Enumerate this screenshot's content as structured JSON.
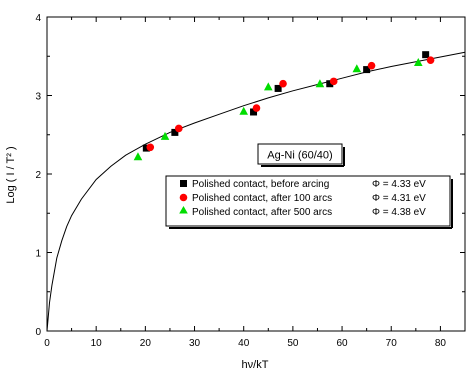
{
  "chart_data": {
    "type": "scatter",
    "title": "",
    "xlabel": "hν/kT",
    "ylabel": "Log ( I / T² )",
    "xlim": [
      0,
      85
    ],
    "ylim": [
      0,
      4
    ],
    "x_ticks": [
      0,
      10,
      20,
      30,
      40,
      50,
      60,
      70,
      80
    ],
    "y_ticks": [
      0,
      1,
      2,
      3,
      4
    ],
    "x_tick_labels": [
      "0",
      "10",
      "20",
      "30",
      "40",
      "50",
      "60",
      "70",
      "80"
    ],
    "y_tick_labels": [
      "0",
      "1",
      "2",
      "3",
      "4"
    ],
    "grid": false,
    "inset_label": "Ag-Ni (60/40)",
    "legend_position": "center-right",
    "series": [
      {
        "name": "Polished contact, before arcing",
        "phi_label": "Φ = 4.33 eV",
        "marker": "square",
        "color": "#000000",
        "points": [
          [
            20.2,
            2.33
          ],
          [
            26.0,
            2.53
          ],
          [
            42.0,
            2.79
          ],
          [
            47.0,
            3.09
          ],
          [
            57.5,
            3.15
          ],
          [
            65.0,
            3.33
          ],
          [
            77.0,
            3.52
          ]
        ]
      },
      {
        "name": "Polished contact, after 100 arcs",
        "phi_label": "Φ = 4.31 eV",
        "marker": "circle",
        "color": "#ff0000",
        "points": [
          [
            21.0,
            2.34
          ],
          [
            26.8,
            2.58
          ],
          [
            42.6,
            2.84
          ],
          [
            48.0,
            3.15
          ],
          [
            58.3,
            3.18
          ],
          [
            66.0,
            3.38
          ],
          [
            78.0,
            3.45
          ]
        ]
      },
      {
        "name": "Polished contact, after 500 arcs",
        "phi_label": "Φ = 4.38 eV",
        "marker": "triangle",
        "color": "#00dd00",
        "points": [
          [
            18.5,
            2.22
          ],
          [
            24.0,
            2.48
          ],
          [
            40.0,
            2.8
          ],
          [
            45.0,
            3.11
          ],
          [
            55.5,
            3.15
          ],
          [
            63.0,
            3.34
          ],
          [
            75.5,
            3.42
          ]
        ]
      }
    ],
    "fit_curve": {
      "type": "line",
      "color": "#000000",
      "description": "fitted curve",
      "x": [
        0,
        0.5,
        1,
        2,
        3,
        4,
        5,
        7,
        10,
        13,
        16,
        20,
        25,
        30,
        35,
        40,
        45,
        50,
        55,
        60,
        65,
        70,
        75,
        80,
        85
      ],
      "y": [
        0,
        0.36,
        0.58,
        0.93,
        1.15,
        1.33,
        1.47,
        1.68,
        1.93,
        2.1,
        2.24,
        2.38,
        2.53,
        2.65,
        2.76,
        2.87,
        2.97,
        3.06,
        3.14,
        3.22,
        3.3,
        3.37,
        3.43,
        3.49,
        3.55
      ]
    }
  }
}
